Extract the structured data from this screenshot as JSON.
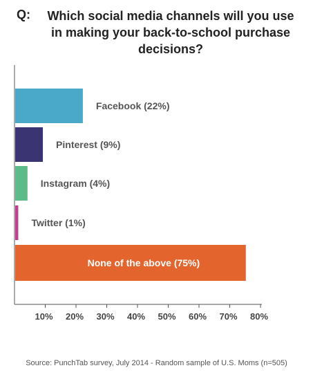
{
  "question": {
    "prefix": "Q:",
    "text": "Which social media channels will you use in making your back-to-school purchase decisions?"
  },
  "source": "Source: PunchTab survey, July 2014 - Random sample of U.S. Moms (n=505)",
  "chart_data": {
    "type": "bar",
    "orientation": "horizontal",
    "categories": [
      "Facebook (22%)",
      "Pinterest (9%)",
      "Instagram (4%)",
      "Twitter (1%)",
      "None of the above (75%)"
    ],
    "values": [
      22,
      9,
      4,
      1,
      75
    ],
    "colors": [
      "#4aa8c8",
      "#3a3472",
      "#5dbb8a",
      "#c43d8e",
      "#e4642d"
    ],
    "label_colors": [
      "#555555",
      "#555555",
      "#555555",
      "#555555",
      "#ffffff"
    ],
    "ticks": [
      "10%",
      "20%",
      "30%",
      "40%",
      "50%",
      "60%",
      "70%",
      "80%"
    ],
    "tick_values": [
      10,
      20,
      30,
      40,
      50,
      60,
      70,
      80
    ],
    "xlim": [
      0,
      80
    ],
    "xlabel": "",
    "ylabel": "",
    "grid": false
  }
}
